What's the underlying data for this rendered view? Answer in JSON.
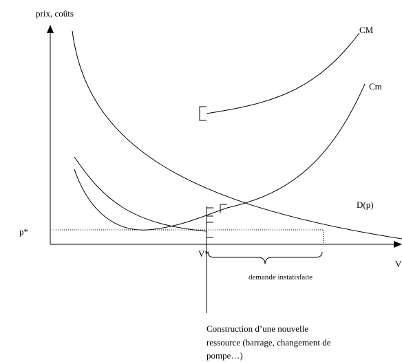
{
  "axis": {
    "y_label": "prix, coûts",
    "x_label": "V"
  },
  "labels": {
    "p_star": "p*",
    "v_star": "V*",
    "cm_upper": "CM",
    "cm_lower": "Cm",
    "demand": "D(p)",
    "gap": "demande instatisfaite"
  },
  "annotation": {
    "lines": [
      "Construction d’une nouvelle",
      "ressource (barrage, changement de",
      "pompe…)"
    ]
  }
}
